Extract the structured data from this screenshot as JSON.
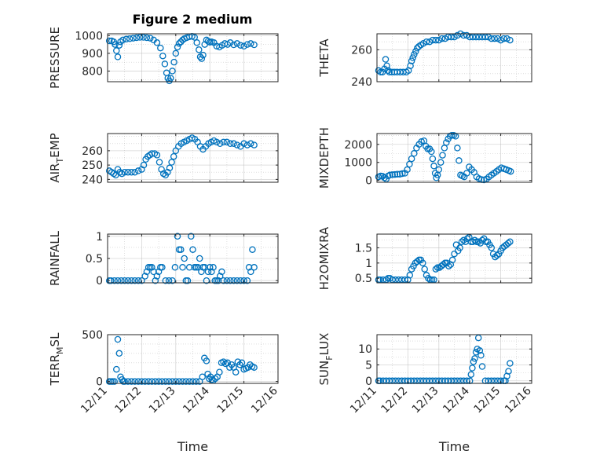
{
  "figure": {
    "title": "Figure 2 medium"
  },
  "colors": {
    "marker": "#0072BD",
    "axis": "#262626",
    "grid": "#b4b4b4"
  },
  "chart_data": [
    {
      "type": "scatter",
      "ylabel": "PRESSURE",
      "xlabel": "",
      "ylim": [
        740,
        1010
      ],
      "yticks": [
        800,
        900,
        1000
      ],
      "yminor": [
        750,
        850,
        950
      ],
      "x": [
        11.05,
        11.12,
        11.18,
        11.22,
        11.26,
        11.3,
        11.34,
        11.38,
        11.45,
        11.55,
        11.65,
        11.75,
        11.85,
        11.95,
        12.05,
        12.15,
        12.25,
        12.35,
        12.45,
        12.55,
        12.62,
        12.68,
        12.73,
        12.77,
        12.81,
        12.85,
        12.9,
        12.95,
        13.0,
        13.05,
        13.1,
        13.15,
        13.2,
        13.25,
        13.32,
        13.4,
        13.48,
        13.55,
        13.62,
        13.68,
        13.72,
        13.76,
        13.8,
        13.85,
        13.9,
        13.95,
        14.0,
        14.05,
        14.12,
        14.2,
        14.28,
        14.36,
        14.44,
        14.52,
        14.6,
        14.7,
        14.8,
        14.9,
        15.0,
        15.1,
        15.2,
        15.3
      ],
      "y": [
        970,
        970,
        965,
        950,
        915,
        880,
        945,
        965,
        975,
        980,
        982,
        985,
        988,
        990,
        990,
        988,
        985,
        975,
        960,
        930,
        885,
        840,
        790,
        760,
        745,
        760,
        800,
        850,
        900,
        935,
        955,
        965,
        975,
        982,
        988,
        993,
        996,
        990,
        960,
        920,
        880,
        870,
        890,
        950,
        975,
        968,
        962,
        965,
        960,
        940,
        935,
        945,
        955,
        950,
        960,
        948,
        955,
        945,
        940,
        950,
        955,
        948
      ]
    },
    {
      "type": "scatter",
      "ylabel": "THETA",
      "xlabel": "",
      "ylim": [
        240,
        270
      ],
      "yticks": [
        240,
        260
      ],
      "yminor": [
        245,
        250,
        255,
        265
      ],
      "x": [
        11.05,
        11.12,
        11.18,
        11.24,
        11.28,
        11.32,
        11.36,
        11.4,
        11.48,
        11.56,
        11.65,
        11.75,
        11.85,
        11.95,
        12.02,
        12.08,
        12.12,
        12.16,
        12.2,
        12.25,
        12.3,
        12.35,
        12.42,
        12.5,
        12.6,
        12.7,
        12.8,
        12.9,
        13.0,
        13.1,
        13.2,
        13.3,
        13.4,
        13.5,
        13.6,
        13.7,
        13.8,
        13.9,
        14.0,
        14.1,
        14.2,
        14.3,
        14.4,
        14.5,
        14.6,
        14.7,
        14.8,
        14.9,
        15.0,
        15.1,
        15.2,
        15.3
      ],
      "y": [
        247,
        246,
        246,
        248,
        254,
        250,
        247,
        246,
        246,
        246,
        246,
        246,
        246,
        246,
        247,
        250,
        253,
        255,
        257,
        259,
        261,
        262,
        263,
        264,
        265,
        265,
        266,
        266,
        266,
        267,
        267,
        268,
        268,
        268,
        269,
        270,
        269,
        269,
        268,
        268,
        268,
        268,
        268,
        268,
        268,
        267,
        267,
        267,
        266,
        267,
        267,
        266
      ]
    },
    {
      "type": "scatter",
      "ylabel": "AIR_TEMP",
      "xlabel": "",
      "ylim": [
        238,
        272
      ],
      "yticks": [
        240,
        250,
        260
      ],
      "yminor": [
        245,
        255,
        265,
        270
      ],
      "x": [
        11.05,
        11.12,
        11.18,
        11.24,
        11.3,
        11.36,
        11.42,
        11.5,
        11.6,
        11.7,
        11.8,
        11.9,
        12.0,
        12.06,
        12.12,
        12.18,
        12.24,
        12.3,
        12.38,
        12.45,
        12.52,
        12.58,
        12.64,
        12.7,
        12.76,
        12.82,
        12.88,
        12.94,
        13.0,
        13.08,
        13.16,
        13.24,
        13.32,
        13.4,
        13.48,
        13.56,
        13.64,
        13.72,
        13.8,
        13.88,
        13.96,
        14.04,
        14.12,
        14.2,
        14.3,
        14.4,
        14.5,
        14.6,
        14.7,
        14.8,
        14.9,
        15.0,
        15.1,
        15.2,
        15.3
      ],
      "y": [
        246,
        245,
        244,
        243,
        247,
        245,
        244,
        245,
        245,
        245,
        245,
        246,
        247,
        250,
        254,
        256,
        257,
        258,
        258,
        257,
        252,
        247,
        244,
        243,
        245,
        248,
        252,
        256,
        260,
        263,
        265,
        266,
        267,
        268,
        269,
        268,
        266,
        263,
        261,
        263,
        265,
        266,
        267,
        266,
        265,
        266,
        266,
        265,
        265,
        264,
        263,
        265,
        264,
        265,
        264
      ]
    },
    {
      "type": "scatter",
      "ylabel": "MIXDEPTH",
      "xlabel": "",
      "ylim": [
        -100,
        2600
      ],
      "yticks": [
        0,
        1000,
        2000
      ],
      "yminor": [
        500,
        1500,
        2500
      ],
      "x": [
        11.05,
        11.12,
        11.18,
        11.24,
        11.3,
        11.36,
        11.42,
        11.5,
        11.58,
        11.66,
        11.74,
        11.82,
        11.9,
        11.98,
        12.05,
        12.12,
        12.2,
        12.28,
        12.36,
        12.44,
        12.52,
        12.58,
        12.64,
        12.7,
        12.76,
        12.8,
        12.84,
        12.88,
        12.92,
        12.96,
        13.0,
        13.06,
        13.12,
        13.18,
        13.24,
        13.3,
        13.36,
        13.42,
        13.48,
        13.54,
        13.6,
        13.65,
        13.7,
        13.76,
        13.82,
        13.9,
        13.98,
        14.06,
        14.14,
        14.22,
        14.3,
        14.38,
        14.46,
        14.54,
        14.62,
        14.7,
        14.78,
        14.86,
        14.94,
        15.02,
        15.1,
        15.18,
        15.26,
        15.32
      ],
      "y": [
        200,
        250,
        230,
        150,
        80,
        250,
        300,
        320,
        330,
        350,
        350,
        380,
        400,
        600,
        900,
        1200,
        1500,
        1800,
        2000,
        2150,
        2200,
        1900,
        1750,
        1750,
        1600,
        1200,
        800,
        400,
        150,
        300,
        600,
        1000,
        1400,
        1800,
        2100,
        2300,
        2450,
        2500,
        2500,
        2450,
        1800,
        1100,
        300,
        250,
        200,
        400,
        750,
        600,
        450,
        200,
        100,
        50,
        30,
        80,
        200,
        300,
        400,
        500,
        600,
        700,
        650,
        600,
        550,
        500
      ]
    },
    {
      "type": "scatter",
      "ylabel": "RAINFALL",
      "xlabel": "",
      "ylim": [
        -0.05,
        1.05
      ],
      "yticks": [
        0,
        0.5,
        1
      ],
      "yminor": [
        0.25,
        0.75
      ],
      "x": [
        11.05,
        11.1,
        11.2,
        11.3,
        11.4,
        11.5,
        11.6,
        11.7,
        11.8,
        11.9,
        12.0,
        12.1,
        12.15,
        12.2,
        12.25,
        12.3,
        12.35,
        12.4,
        12.45,
        12.5,
        12.55,
        12.6,
        12.7,
        12.8,
        12.9,
        12.98,
        13.05,
        13.1,
        13.15,
        13.2,
        13.25,
        13.3,
        13.35,
        13.4,
        13.45,
        13.5,
        13.55,
        13.6,
        13.65,
        13.7,
        13.75,
        13.8,
        13.85,
        13.9,
        13.95,
        14.0,
        14.05,
        14.1,
        14.15,
        14.2,
        14.25,
        14.3,
        14.35,
        14.4,
        14.5,
        14.6,
        14.7,
        14.8,
        14.9,
        15.0,
        15.1,
        15.15,
        15.2,
        15.25,
        15.3
      ],
      "y": [
        0,
        0,
        0,
        0,
        0,
        0,
        0,
        0,
        0,
        0,
        0,
        0.1,
        0.2,
        0.3,
        0.3,
        0.3,
        0.2,
        0,
        0.1,
        0.2,
        0.3,
        0.3,
        0,
        0,
        0,
        0.3,
        1,
        0.7,
        0.7,
        0.3,
        0.5,
        0,
        0,
        0.3,
        1,
        0.7,
        0.3,
        0.3,
        0.3,
        0.5,
        0.2,
        0.3,
        0.3,
        0,
        0.2,
        0.3,
        0.2,
        0.3,
        0,
        0,
        0,
        0.1,
        0.2,
        0,
        0,
        0,
        0,
        0,
        0,
        0,
        0,
        0.3,
        0.2,
        0.7,
        0.3
      ]
    },
    {
      "type": "scatter",
      "ylabel": "H2OMIXRA",
      "xlabel": "",
      "ylim": [
        0.35,
        1.95
      ],
      "yticks": [
        0.5,
        1,
        1.5
      ],
      "yminor": [
        0.75,
        1.25,
        1.75
      ],
      "x": [
        11.05,
        11.1,
        11.2,
        11.3,
        11.36,
        11.42,
        11.5,
        11.6,
        11.7,
        11.8,
        11.9,
        12.0,
        12.06,
        12.12,
        12.18,
        12.24,
        12.3,
        12.36,
        12.42,
        12.48,
        12.54,
        12.6,
        12.66,
        12.72,
        12.78,
        12.84,
        12.9,
        12.96,
        13.02,
        13.08,
        13.14,
        13.2,
        13.26,
        13.32,
        13.38,
        13.44,
        13.5,
        13.56,
        13.62,
        13.68,
        13.74,
        13.8,
        13.86,
        13.92,
        13.98,
        14.04,
        14.1,
        14.16,
        14.22,
        14.28,
        14.34,
        14.4,
        14.46,
        14.52,
        14.58,
        14.64,
        14.7,
        14.76,
        14.82,
        14.88,
        14.94,
        15.0,
        15.06,
        15.12,
        15.18,
        15.24,
        15.3
      ],
      "y": [
        0.45,
        0.45,
        0.45,
        0.45,
        0.5,
        0.5,
        0.45,
        0.45,
        0.45,
        0.45,
        0.45,
        0.45,
        0.6,
        0.8,
        0.9,
        1.0,
        1.05,
        1.1,
        1.1,
        1.0,
        0.8,
        0.6,
        0.5,
        0.45,
        0.45,
        0.45,
        0.8,
        0.85,
        0.85,
        0.9,
        0.95,
        1.0,
        1.0,
        0.9,
        0.95,
        1.1,
        1.3,
        1.6,
        1.4,
        1.5,
        1.7,
        1.75,
        1.7,
        1.8,
        1.85,
        1.7,
        1.7,
        1.75,
        1.7,
        1.7,
        1.65,
        1.75,
        1.8,
        1.7,
        1.7,
        1.6,
        1.5,
        1.3,
        1.2,
        1.25,
        1.3,
        1.4,
        1.5,
        1.55,
        1.6,
        1.65,
        1.7
      ]
    },
    {
      "type": "scatter",
      "ylabel": "TERR_MSL",
      "xlabel": "Time",
      "xlim": [
        11,
        16
      ],
      "xticklabels": [
        "12/11",
        "12/12",
        "12/13",
        "12/14",
        "12/15",
        "12/16"
      ],
      "xminor": [
        11.5,
        12.5,
        13.5,
        14.5,
        15.5
      ],
      "ylim": [
        -20,
        500
      ],
      "yticks": [
        0,
        500
      ],
      "yminor": [
        100,
        200,
        300,
        400
      ],
      "x": [
        11.05,
        11.1,
        11.15,
        11.2,
        11.26,
        11.3,
        11.34,
        11.38,
        11.42,
        11.46,
        11.5,
        11.6,
        11.7,
        11.8,
        11.9,
        12.0,
        12.1,
        12.2,
        12.3,
        12.4,
        12.5,
        12.6,
        12.7,
        12.8,
        12.9,
        13.0,
        13.1,
        13.2,
        13.3,
        13.4,
        13.5,
        13.6,
        13.7,
        13.78,
        13.84,
        13.9,
        13.94,
        13.98,
        14.02,
        14.06,
        14.1,
        14.16,
        14.22,
        14.28,
        14.34,
        14.4,
        14.46,
        14.52,
        14.58,
        14.64,
        14.7,
        14.76,
        14.82,
        14.88,
        14.94,
        15.0,
        15.06,
        15.12,
        15.18,
        15.24,
        15.3
      ],
      "y": [
        0,
        0,
        0,
        0,
        130,
        450,
        300,
        50,
        20,
        0,
        0,
        0,
        0,
        0,
        0,
        0,
        0,
        0,
        0,
        0,
        0,
        0,
        0,
        0,
        0,
        0,
        0,
        0,
        0,
        0,
        0,
        0,
        0,
        50,
        250,
        220,
        80,
        30,
        50,
        20,
        10,
        30,
        50,
        100,
        200,
        210,
        190,
        200,
        150,
        180,
        150,
        100,
        210,
        180,
        200,
        130,
        140,
        150,
        180,
        160,
        150
      ]
    },
    {
      "type": "scatter",
      "ylabel": "SUN_FLUX",
      "xlabel": "Time",
      "xlim": [
        11,
        16
      ],
      "xticklabels": [
        "12/11",
        "12/12",
        "12/13",
        "12/14",
        "12/15",
        "12/16"
      ],
      "xminor": [
        11.5,
        12.5,
        13.5,
        14.5,
        15.5
      ],
      "ylim": [
        -0.8,
        14.5
      ],
      "yticks": [
        0,
        5,
        10
      ],
      "yminor": [
        2.5,
        7.5,
        12.5
      ],
      "x": [
        11.05,
        11.1,
        11.2,
        11.3,
        11.4,
        11.5,
        11.6,
        11.7,
        11.8,
        11.9,
        12.0,
        12.1,
        12.2,
        12.3,
        12.4,
        12.5,
        12.6,
        12.7,
        12.8,
        12.9,
        13.0,
        13.1,
        13.2,
        13.3,
        13.4,
        13.5,
        13.6,
        13.7,
        13.8,
        13.9,
        14.0,
        14.04,
        14.08,
        14.12,
        14.16,
        14.2,
        14.24,
        14.28,
        14.32,
        14.36,
        14.4,
        14.5,
        14.6,
        14.7,
        14.8,
        14.9,
        15.0,
        15.1,
        15.15,
        15.2,
        15.25,
        15.3
      ],
      "y": [
        0,
        0,
        0,
        0,
        0,
        0,
        0,
        0,
        0,
        0,
        0,
        0,
        0,
        0,
        0,
        0,
        0,
        0,
        0,
        0,
        0,
        0,
        0,
        0,
        0,
        0,
        0,
        0,
        0,
        0,
        0,
        2,
        4,
        6,
        7,
        9,
        10,
        13.5,
        9.5,
        8,
        4.5,
        0,
        0,
        0,
        0,
        0,
        0,
        0,
        0,
        1.5,
        3,
        5.5
      ]
    }
  ]
}
